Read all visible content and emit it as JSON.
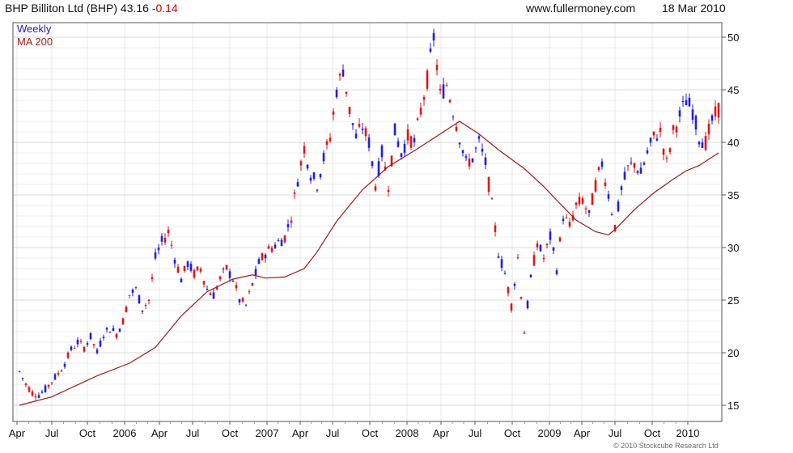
{
  "header": {
    "title": "BHP Billiton Ltd (BHP) 43.16",
    "change": "-0.14",
    "site": "www.fullermoney.com",
    "date": "18 Mar 2010"
  },
  "legend": {
    "series1": "Weekly",
    "series2": "MA 200"
  },
  "footer": {
    "credit": "© 2010 Stockcube Research Ltd"
  },
  "colors": {
    "up": "#1f1fdc",
    "down": "#e01414",
    "ma": "#a01818",
    "grid": "#d9d9d9",
    "title_red": "#cc0000",
    "legend_blue": "#2020b0",
    "legend_red": "#a02020"
  },
  "chart_data": {
    "type": "candlestick",
    "title": "BHP Billiton Ltd (BHP) 43.16 -0.14",
    "ylabel": "",
    "xlabel": "",
    "ylim": [
      14,
      51
    ],
    "y_ticks": [
      15,
      20,
      25,
      30,
      35,
      40,
      45,
      50
    ],
    "x_tick_labels": [
      "Apr",
      "Jul",
      "Oct",
      "2006",
      "Apr",
      "Jul",
      "Oct",
      "2007",
      "Apr",
      "Jul",
      "Oct",
      "2008",
      "Apr",
      "Jul",
      "Oct",
      "2009",
      "Apr",
      "Jul",
      "Oct",
      "2010"
    ],
    "grid": true,
    "legend_position": "top-left",
    "weekly_close_points": [
      [
        0,
        18.2
      ],
      [
        1,
        17.0
      ],
      [
        2,
        16.2
      ],
      [
        3,
        16.0
      ],
      [
        4,
        16.5
      ],
      [
        5,
        17.3
      ],
      [
        6,
        18.0
      ],
      [
        7,
        19.0
      ],
      [
        8,
        20.3
      ],
      [
        9,
        21.0
      ],
      [
        10,
        20.5
      ],
      [
        11,
        21.5
      ],
      [
        12,
        20.0
      ],
      [
        13,
        21.8
      ],
      [
        14,
        22.3
      ],
      [
        15,
        21.8
      ],
      [
        16,
        23.0
      ],
      [
        17,
        25.5
      ],
      [
        18,
        26.0
      ],
      [
        19,
        24.2
      ],
      [
        20,
        25.0
      ],
      [
        21,
        29.0
      ],
      [
        22,
        30.5
      ],
      [
        23,
        31.5
      ],
      [
        24,
        29.0
      ],
      [
        25,
        27.0
      ],
      [
        26,
        28.5
      ],
      [
        27,
        27.5
      ],
      [
        28,
        28.0
      ],
      [
        29,
        26.0
      ],
      [
        30,
        25.5
      ],
      [
        31,
        27.0
      ],
      [
        32,
        28.0
      ],
      [
        33,
        27.0
      ],
      [
        34,
        25.0
      ],
      [
        35,
        24.5
      ],
      [
        36,
        26.5
      ],
      [
        37,
        28.5
      ],
      [
        38,
        29.5
      ],
      [
        39,
        30.0
      ],
      [
        40,
        30.5
      ],
      [
        41,
        31.0
      ],
      [
        42,
        33.0
      ],
      [
        43,
        36.5
      ],
      [
        44,
        39.5
      ],
      [
        45,
        37.0
      ],
      [
        46,
        36.0
      ],
      [
        47,
        38.5
      ],
      [
        48,
        40.5
      ],
      [
        49,
        45.0
      ],
      [
        50,
        47.0
      ],
      [
        51,
        43.0
      ],
      [
        52,
        40.5
      ],
      [
        53,
        41.5
      ],
      [
        54,
        40.0
      ],
      [
        55,
        36.0
      ],
      [
        56,
        39.0
      ],
      [
        57,
        36.0
      ],
      [
        58,
        41.0
      ],
      [
        59,
        39.0
      ],
      [
        60,
        40.5
      ],
      [
        61,
        40.0
      ],
      [
        62,
        43.0
      ],
      [
        63,
        46.0
      ],
      [
        64,
        50.0
      ],
      [
        65,
        44.5
      ],
      [
        66,
        45.5
      ],
      [
        67,
        43.0
      ],
      [
        68,
        40.5
      ],
      [
        69,
        38.0
      ],
      [
        70,
        38.5
      ],
      [
        71,
        40.0
      ],
      [
        72,
        38.0
      ],
      [
        73,
        34.0
      ],
      [
        74,
        29.5
      ],
      [
        75,
        27.5
      ],
      [
        76,
        24.5
      ],
      [
        77,
        29.0
      ],
      [
        78,
        22.0
      ],
      [
        79,
        27.0
      ],
      [
        80,
        30.5
      ],
      [
        81,
        29.0
      ],
      [
        82,
        31.0
      ],
      [
        83,
        28.0
      ],
      [
        84,
        33.0
      ],
      [
        85,
        32.0
      ],
      [
        86,
        34.0
      ],
      [
        87,
        34.5
      ],
      [
        88,
        33.0
      ],
      [
        89,
        36.0
      ],
      [
        90,
        38.0
      ],
      [
        91,
        35.0
      ],
      [
        92,
        32.0
      ],
      [
        93,
        35.5
      ],
      [
        94,
        37.5
      ],
      [
        95,
        38.0
      ],
      [
        96,
        37.0
      ],
      [
        97,
        39.0
      ],
      [
        98,
        40.5
      ],
      [
        99,
        41.0
      ],
      [
        100,
        38.0
      ],
      [
        101,
        41.0
      ],
      [
        102,
        42.5
      ],
      [
        103,
        44.0
      ],
      [
        104,
        43.0
      ],
      [
        105,
        40.5
      ],
      [
        106,
        40.0
      ],
      [
        107,
        42.0
      ],
      [
        108,
        43.16
      ]
    ],
    "ma_points": [
      [
        0,
        15.0
      ],
      [
        5,
        15.8
      ],
      [
        12,
        17.8
      ],
      [
        17,
        19.0
      ],
      [
        21,
        20.5
      ],
      [
        25,
        23.5
      ],
      [
        29,
        25.8
      ],
      [
        33,
        27.0
      ],
      [
        36,
        27.4
      ],
      [
        38,
        27.1
      ],
      [
        41,
        27.2
      ],
      [
        44,
        28.0
      ],
      [
        46,
        29.6
      ],
      [
        49,
        32.5
      ],
      [
        53,
        35.5
      ],
      [
        57,
        37.7
      ],
      [
        61,
        39.2
      ],
      [
        65,
        40.8
      ],
      [
        68,
        42.0
      ],
      [
        71,
        40.8
      ],
      [
        74,
        39.3
      ],
      [
        78,
        37.5
      ],
      [
        81,
        35.8
      ],
      [
        83,
        34.5
      ],
      [
        86,
        32.6
      ],
      [
        89,
        31.5
      ],
      [
        91,
        31.2
      ],
      [
        92,
        31.7
      ],
      [
        95,
        33.6
      ],
      [
        98,
        35.2
      ],
      [
        101,
        36.5
      ],
      [
        103,
        37.3
      ],
      [
        105,
        37.8
      ],
      [
        108,
        39.0
      ]
    ]
  }
}
